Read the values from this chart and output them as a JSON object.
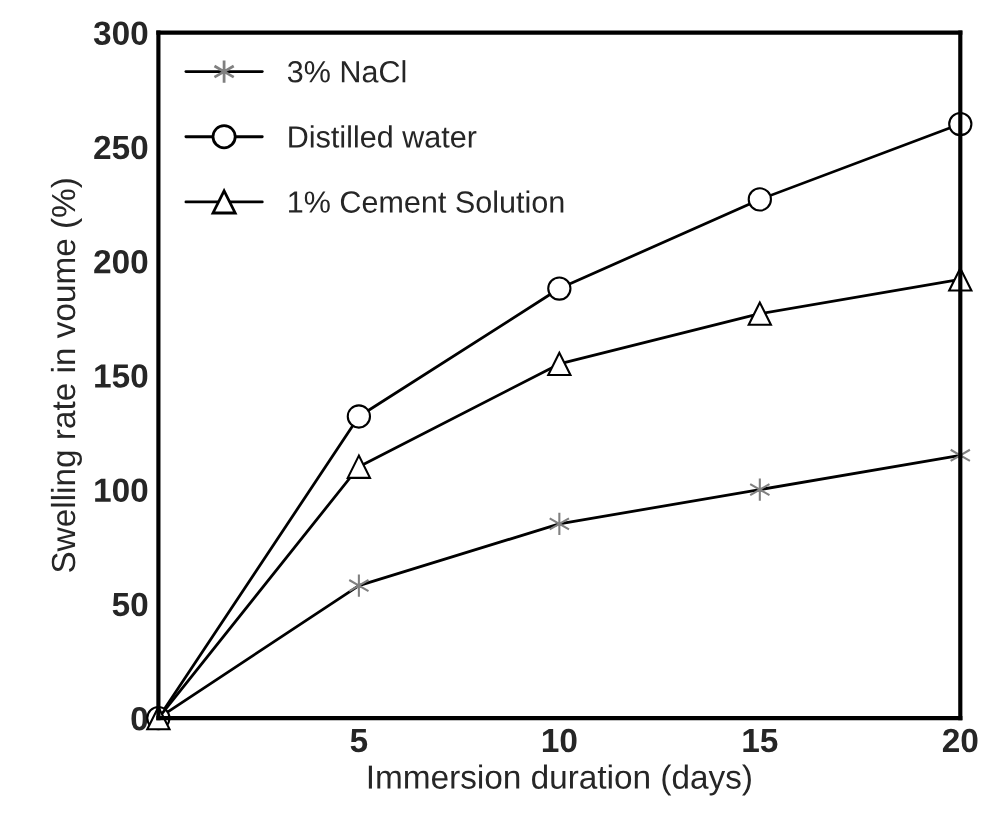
{
  "chart_data": {
    "type": "line",
    "xlabel": "Immersion duration (days)",
    "ylabel": "Swelling rate in voume (%)",
    "x": [
      0,
      5,
      10,
      15,
      20
    ],
    "series": [
      {
        "name": "3% NaCl",
        "color": "#808080",
        "marker": "cross",
        "values": [
          0,
          58,
          85,
          100,
          115
        ]
      },
      {
        "name": "Distilled water",
        "color": "#000000",
        "marker": "circle",
        "values": [
          0,
          132,
          188,
          227,
          260
        ]
      },
      {
        "name": "1% Cement Solution",
        "color": "#000000",
        "marker": "triangle",
        "values": [
          0,
          110,
          155,
          177,
          192
        ]
      }
    ],
    "xlim": [
      0,
      20
    ],
    "ylim": [
      0,
      300
    ],
    "xticks": [
      5,
      10,
      15,
      20
    ],
    "yticks": [
      0,
      50,
      100,
      150,
      200,
      250,
      300
    ],
    "grid": false,
    "legend": "top left",
    "line_style": "solid"
  }
}
